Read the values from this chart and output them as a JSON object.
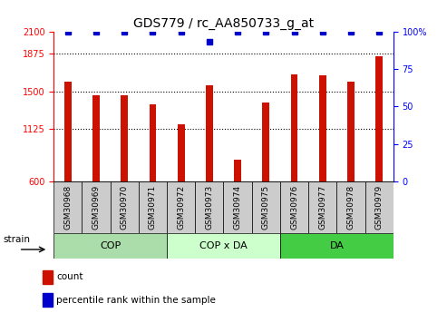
{
  "title": "GDS779 / rc_AA850733_g_at",
  "categories": [
    "GSM30968",
    "GSM30969",
    "GSM30970",
    "GSM30971",
    "GSM30972",
    "GSM30973",
    "GSM30974",
    "GSM30975",
    "GSM30976",
    "GSM30977",
    "GSM30978",
    "GSM30979"
  ],
  "bar_values": [
    1600,
    1460,
    1460,
    1370,
    1175,
    1560,
    820,
    1390,
    1670,
    1665,
    1600,
    1850
  ],
  "percentile_values": [
    100,
    100,
    100,
    100,
    100,
    93,
    100,
    100,
    100,
    100,
    100,
    100
  ],
  "bar_color": "#cc1100",
  "percentile_color": "#0000cc",
  "ylim_left": [
    600,
    2100
  ],
  "ylim_right": [
    0,
    100
  ],
  "yticks_left": [
    600,
    1125,
    1500,
    1875,
    2100
  ],
  "yticks_right": [
    0,
    25,
    50,
    75,
    100
  ],
  "groups": [
    {
      "label": "COP",
      "start": 0,
      "end": 3,
      "color": "#aaddaa"
    },
    {
      "label": "COP x DA",
      "start": 4,
      "end": 7,
      "color": "#ccffcc"
    },
    {
      "label": "DA",
      "start": 8,
      "end": 11,
      "color": "#44cc44"
    }
  ],
  "strain_label": "strain",
  "legend_count_label": "count",
  "legend_percentile_label": "percentile rank within the sample",
  "title_fontsize": 10,
  "tick_fontsize": 7,
  "bar_width": 0.25
}
